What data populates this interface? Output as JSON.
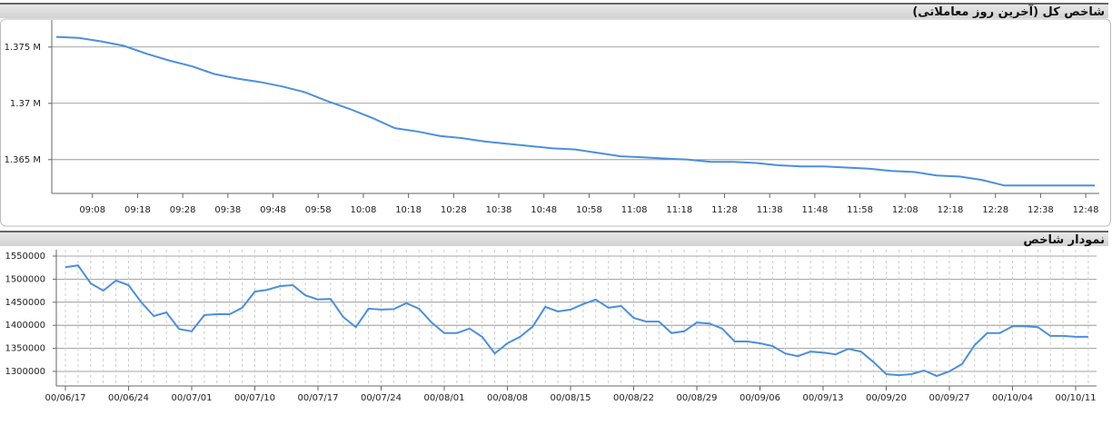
{
  "chart_data": [
    {
      "type": "line",
      "title": "شاخص کل (آخرین روز معاملاتی)",
      "x": [
        "09:00",
        "09:05",
        "09:10",
        "09:15",
        "09:20",
        "09:25",
        "09:30",
        "09:35",
        "09:40",
        "09:45",
        "09:50",
        "09:55",
        "10:00",
        "10:05",
        "10:10",
        "10:15",
        "10:20",
        "10:25",
        "10:30",
        "10:35",
        "10:40",
        "10:45",
        "10:50",
        "10:55",
        "11:00",
        "11:05",
        "11:10",
        "11:15",
        "11:20",
        "11:25",
        "11:30",
        "11:35",
        "11:40",
        "11:45",
        "11:50",
        "11:55",
        "12:00",
        "12:05",
        "12:10",
        "12:15",
        "12:20",
        "12:25",
        "12:30",
        "12:35",
        "12:40",
        "12:45",
        "12:50"
      ],
      "series": [
        {
          "color": "#4a8fe0",
          "values": [
            1375900,
            1375800,
            1375500,
            1375100,
            1374400,
            1373800,
            1373300,
            1372600,
            1372200,
            1371900,
            1371500,
            1371000,
            1370200,
            1369500,
            1368700,
            1367800,
            1367500,
            1367100,
            1366900,
            1366600,
            1366400,
            1366200,
            1366000,
            1365900,
            1365600,
            1365300,
            1365200,
            1365100,
            1365000,
            1364800,
            1364800,
            1364700,
            1364500,
            1364400,
            1364400,
            1364300,
            1364200,
            1364000,
            1363900,
            1363600,
            1363500,
            1363200,
            1362700,
            1362700,
            1362700,
            1362700,
            1362700
          ]
        }
      ],
      "xlim": [
        "08:59",
        "12:51"
      ],
      "xticks": [
        "09:08",
        "09:18",
        "09:28",
        "09:38",
        "09:48",
        "09:58",
        "10:08",
        "10:18",
        "10:28",
        "10:38",
        "10:48",
        "10:58",
        "11:08",
        "11:18",
        "11:28",
        "11:38",
        "11:48",
        "11:58",
        "12:08",
        "12:18",
        "12:28",
        "12:38",
        "12:48"
      ],
      "ylim": [
        1362000,
        1377400
      ],
      "yticks": [
        {
          "value": 1365000,
          "label": "1.365 M"
        },
        {
          "value": 1370000,
          "label": "1.37 M"
        },
        {
          "value": 1375000,
          "label": "1.375 M"
        }
      ],
      "grid": true
    },
    {
      "type": "line",
      "title": "نمودار شاخص",
      "categories": [
        "00/06/17",
        null,
        null,
        null,
        null,
        "00/06/24",
        null,
        null,
        null,
        null,
        "00/07/01",
        null,
        null,
        null,
        null,
        "00/07/10",
        null,
        null,
        null,
        null,
        "00/07/17",
        null,
        null,
        null,
        null,
        "00/07/24",
        null,
        null,
        null,
        null,
        "00/08/01",
        null,
        null,
        null,
        null,
        "00/08/08",
        null,
        null,
        null,
        null,
        "00/08/15",
        null,
        null,
        null,
        null,
        "00/08/22",
        null,
        null,
        null,
        null,
        "00/08/29",
        null,
        null,
        null,
        null,
        "00/09/06",
        null,
        null,
        null,
        null,
        "00/09/13",
        null,
        null,
        null,
        null,
        "00/09/20",
        null,
        null,
        null,
        null,
        "00/09/27",
        null,
        null,
        null,
        null,
        "00/10/04",
        null,
        null,
        null,
        null,
        "00/10/11",
        null
      ],
      "series": [
        {
          "color": "#4a8fe0",
          "values": [
            1526000,
            1530000,
            1491000,
            1475000,
            1497000,
            1487000,
            1450000,
            1420000,
            1428000,
            1392000,
            1387000,
            1422000,
            1424000,
            1424000,
            1438000,
            1473000,
            1477000,
            1485000,
            1487000,
            1465000,
            1456000,
            1457000,
            1418000,
            1396000,
            1436000,
            1434000,
            1435000,
            1448000,
            1436000,
            1406000,
            1383000,
            1383000,
            1393000,
            1375000,
            1339000,
            1361000,
            1375000,
            1397000,
            1440000,
            1430000,
            1434000,
            1446000,
            1456000,
            1438000,
            1442000,
            1416000,
            1408000,
            1408000,
            1383000,
            1387000,
            1406000,
            1404000,
            1393000,
            1365000,
            1365000,
            1361000,
            1355000,
            1339000,
            1333000,
            1343000,
            1341000,
            1337000,
            1349000,
            1343000,
            1320000,
            1294000,
            1292000,
            1294000,
            1302000,
            1290000,
            1300000,
            1316000,
            1357000,
            1383000,
            1383000,
            1398000,
            1398000,
            1396000,
            1377000,
            1377000,
            1375000,
            1375000
          ]
        }
      ],
      "ylim": [
        1268500,
        1563800
      ],
      "yticks": [
        1300000,
        1350000,
        1400000,
        1450000,
        1500000,
        1550000
      ],
      "grid": true
    }
  ]
}
